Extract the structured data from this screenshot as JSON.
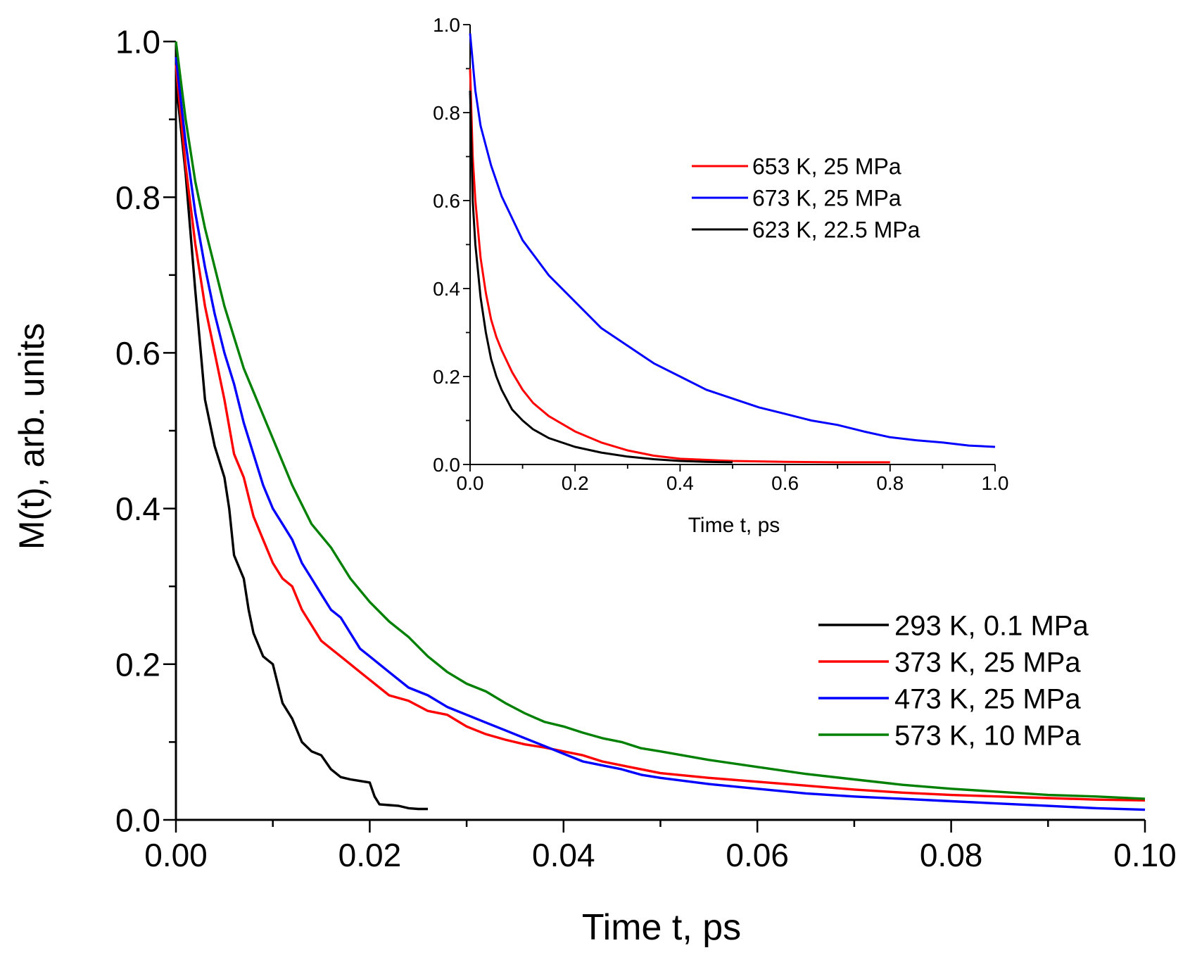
{
  "chart_data": [
    {
      "type": "line",
      "title": "",
      "xlabel": "Time t, ps",
      "ylabel": "M(t), arb. units",
      "xlim": [
        0,
        0.1
      ],
      "ylim": [
        0,
        1.0
      ],
      "xticks": [
        "0.00",
        "0.02",
        "0.04",
        "0.06",
        "0.08",
        "0.10"
      ],
      "yticks": [
        "0.0",
        "0.2",
        "0.4",
        "0.6",
        "0.8",
        "1.0"
      ],
      "grid": false,
      "legend_position": "right",
      "series": [
        {
          "name": "293 K, 0.1 MPa",
          "color": "#000000",
          "x": [
            0,
            0.001,
            0.002,
            0.003,
            0.004,
            0.005,
            0.0055,
            0.006,
            0.007,
            0.0075,
            0.008,
            0.009,
            0.0095,
            0.01,
            0.011,
            0.012,
            0.013,
            0.014,
            0.015,
            0.016,
            0.017,
            0.018,
            0.019,
            0.02,
            0.0205,
            0.021,
            0.022,
            0.023,
            0.024,
            0.025,
            0.026
          ],
          "y": [
            0.95,
            0.83,
            0.68,
            0.54,
            0.48,
            0.44,
            0.4,
            0.34,
            0.31,
            0.27,
            0.24,
            0.21,
            0.205,
            0.2,
            0.15,
            0.13,
            0.1,
            0.088,
            0.083,
            0.065,
            0.055,
            0.052,
            0.05,
            0.048,
            0.03,
            0.02,
            0.019,
            0.018,
            0.015,
            0.014,
            0.014
          ]
        },
        {
          "name": "373 K, 25 MPa",
          "color": "#ff0000",
          "x": [
            0,
            0.001,
            0.002,
            0.003,
            0.004,
            0.005,
            0.006,
            0.007,
            0.008,
            0.009,
            0.01,
            0.011,
            0.012,
            0.013,
            0.014,
            0.015,
            0.016,
            0.017,
            0.018,
            0.019,
            0.02,
            0.021,
            0.022,
            0.024,
            0.026,
            0.028,
            0.03,
            0.032,
            0.034,
            0.036,
            0.038,
            0.04,
            0.042,
            0.044,
            0.046,
            0.048,
            0.05,
            0.055,
            0.06,
            0.065,
            0.07,
            0.075,
            0.08,
            0.085,
            0.09,
            0.095,
            0.1
          ],
          "y": [
            0.97,
            0.84,
            0.74,
            0.66,
            0.6,
            0.54,
            0.47,
            0.44,
            0.39,
            0.36,
            0.33,
            0.31,
            0.3,
            0.27,
            0.25,
            0.23,
            0.22,
            0.21,
            0.2,
            0.19,
            0.18,
            0.17,
            0.16,
            0.153,
            0.14,
            0.135,
            0.12,
            0.11,
            0.103,
            0.097,
            0.093,
            0.088,
            0.083,
            0.075,
            0.07,
            0.065,
            0.06,
            0.054,
            0.049,
            0.044,
            0.039,
            0.035,
            0.032,
            0.03,
            0.028,
            0.026,
            0.025
          ]
        },
        {
          "name": "473 K, 25 MPa",
          "color": "#0000ff",
          "x": [
            0,
            0.001,
            0.002,
            0.003,
            0.004,
            0.005,
            0.006,
            0.007,
            0.008,
            0.009,
            0.01,
            0.011,
            0.012,
            0.013,
            0.014,
            0.015,
            0.016,
            0.017,
            0.018,
            0.019,
            0.02,
            0.022,
            0.024,
            0.026,
            0.028,
            0.03,
            0.032,
            0.034,
            0.036,
            0.038,
            0.04,
            0.042,
            0.044,
            0.046,
            0.048,
            0.05,
            0.055,
            0.06,
            0.065,
            0.07,
            0.075,
            0.08,
            0.085,
            0.09,
            0.095,
            0.1
          ],
          "y": [
            0.98,
            0.87,
            0.78,
            0.71,
            0.65,
            0.6,
            0.56,
            0.51,
            0.47,
            0.43,
            0.4,
            0.38,
            0.36,
            0.33,
            0.31,
            0.29,
            0.27,
            0.26,
            0.24,
            0.22,
            0.21,
            0.19,
            0.17,
            0.16,
            0.145,
            0.135,
            0.125,
            0.115,
            0.105,
            0.095,
            0.085,
            0.075,
            0.07,
            0.065,
            0.058,
            0.054,
            0.046,
            0.04,
            0.034,
            0.03,
            0.027,
            0.024,
            0.021,
            0.018,
            0.015,
            0.013
          ]
        },
        {
          "name": "573 K, 10 MPa",
          "color": "#008000",
          "x": [
            0,
            0.001,
            0.002,
            0.003,
            0.004,
            0.005,
            0.006,
            0.007,
            0.008,
            0.009,
            0.01,
            0.012,
            0.014,
            0.016,
            0.018,
            0.02,
            0.022,
            0.024,
            0.026,
            0.028,
            0.03,
            0.032,
            0.034,
            0.036,
            0.038,
            0.04,
            0.042,
            0.044,
            0.046,
            0.048,
            0.05,
            0.055,
            0.06,
            0.065,
            0.07,
            0.075,
            0.08,
            0.085,
            0.09,
            0.095,
            0.1
          ],
          "y": [
            1.0,
            0.9,
            0.82,
            0.76,
            0.71,
            0.66,
            0.62,
            0.58,
            0.55,
            0.52,
            0.49,
            0.43,
            0.38,
            0.35,
            0.31,
            0.28,
            0.255,
            0.235,
            0.21,
            0.19,
            0.175,
            0.165,
            0.15,
            0.137,
            0.126,
            0.12,
            0.112,
            0.105,
            0.1,
            0.092,
            0.088,
            0.077,
            0.068,
            0.059,
            0.052,
            0.045,
            0.04,
            0.036,
            0.032,
            0.03,
            0.027
          ]
        }
      ]
    },
    {
      "type": "line",
      "title": "",
      "xlabel": "Time t, ps",
      "ylabel": "",
      "xlim": [
        0,
        1.0
      ],
      "ylim": [
        0,
        1.0
      ],
      "xticks": [
        "0.0",
        "0.2",
        "0.4",
        "0.6",
        "0.8",
        "1.0"
      ],
      "yticks": [
        "0.0",
        "0.2",
        "0.4",
        "0.6",
        "0.8",
        "1.0"
      ],
      "grid": false,
      "legend_position": "top-right",
      "series": [
        {
          "name": "653 K, 25 MPa",
          "color": "#ff0000",
          "x": [
            0,
            0.005,
            0.01,
            0.02,
            0.03,
            0.04,
            0.05,
            0.06,
            0.08,
            0.1,
            0.12,
            0.15,
            0.2,
            0.25,
            0.3,
            0.35,
            0.4,
            0.5,
            0.6,
            0.7,
            0.8
          ],
          "y": [
            0.9,
            0.7,
            0.6,
            0.47,
            0.39,
            0.33,
            0.29,
            0.26,
            0.21,
            0.17,
            0.14,
            0.11,
            0.075,
            0.05,
            0.032,
            0.02,
            0.013,
            0.008,
            0.006,
            0.005,
            0.005
          ]
        },
        {
          "name": "673 K, 25 MPa",
          "color": "#0000ff",
          "x": [
            0,
            0.01,
            0.02,
            0.04,
            0.06,
            0.08,
            0.1,
            0.15,
            0.2,
            0.25,
            0.3,
            0.35,
            0.4,
            0.45,
            0.5,
            0.55,
            0.6,
            0.65,
            0.7,
            0.75,
            0.8,
            0.85,
            0.9,
            0.95,
            1.0
          ],
          "y": [
            0.98,
            0.85,
            0.77,
            0.68,
            0.61,
            0.56,
            0.51,
            0.43,
            0.37,
            0.31,
            0.27,
            0.23,
            0.2,
            0.17,
            0.15,
            0.13,
            0.115,
            0.1,
            0.09,
            0.075,
            0.062,
            0.055,
            0.05,
            0.043,
            0.04
          ]
        },
        {
          "name": "623 K, 22.5 MPa",
          "color": "#000000",
          "x": [
            0,
            0.005,
            0.01,
            0.02,
            0.03,
            0.04,
            0.05,
            0.06,
            0.08,
            0.1,
            0.12,
            0.15,
            0.2,
            0.25,
            0.3,
            0.35,
            0.4,
            0.45,
            0.5
          ],
          "y": [
            0.85,
            0.6,
            0.5,
            0.38,
            0.3,
            0.24,
            0.2,
            0.17,
            0.125,
            0.1,
            0.08,
            0.06,
            0.04,
            0.027,
            0.018,
            0.012,
            0.008,
            0.006,
            0.005
          ]
        }
      ]
    }
  ]
}
